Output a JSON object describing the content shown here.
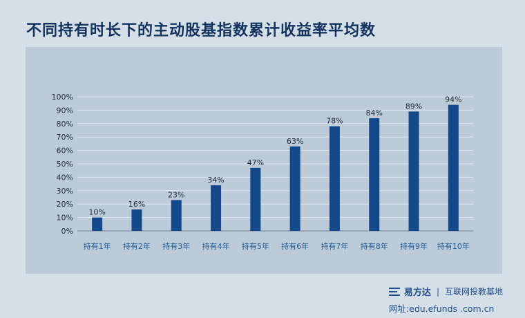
{
  "title": "不同持有时长下的主动股基指数累计收益率平均数",
  "chart_data": {
    "type": "bar",
    "categories": [
      "持有1年",
      "持有2年",
      "持有3年",
      "持有4年",
      "持有5年",
      "持有6年",
      "持有7年",
      "持有8年",
      "持有9年",
      "持有10年"
    ],
    "values": [
      10,
      16,
      23,
      34,
      47,
      63,
      78,
      84,
      89,
      94
    ],
    "value_suffix": "%",
    "yticks": [
      "0%",
      "10%",
      "20%",
      "30%",
      "40%",
      "50%",
      "60%",
      "70%",
      "80%",
      "90%",
      "100%"
    ],
    "ylim": [
      0,
      100
    ],
    "grid": true,
    "bar_color": "#13498a"
  },
  "footer": {
    "brand": "易方达",
    "separator": "|",
    "subtitle": "互联网投教基地",
    "url": "网址:edu.efunds .com.cn"
  }
}
